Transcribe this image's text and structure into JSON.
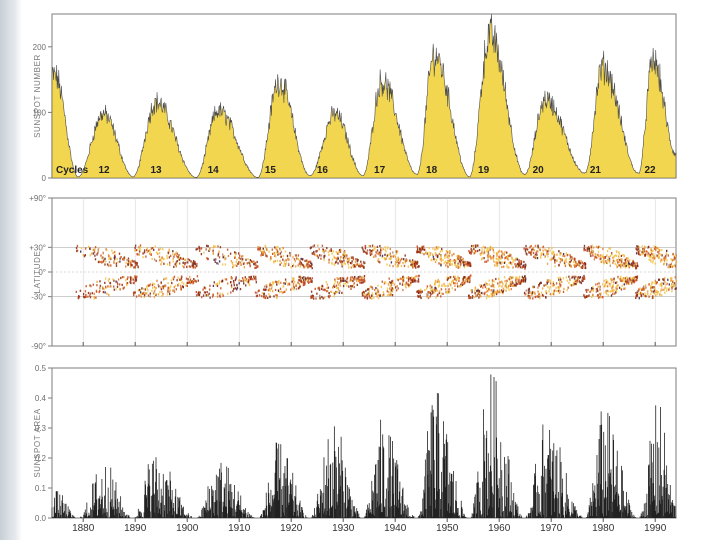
{
  "colors": {
    "number_fill": "#f2d64f",
    "number_stroke": "#4a4a4a",
    "area_bar": "#222222",
    "butterfly_hot": "#d9622b",
    "butterfly_core": "#f0b03a",
    "butterfly_dark": "#5a1e10",
    "frame": "#7d7d7d"
  },
  "chart_data": [
    {
      "type": "area",
      "id": "sunspot-number",
      "ylabel": "SUNSPOT NUMBER",
      "ylim": [
        0,
        250
      ],
      "yticks": [
        {
          "value": 0,
          "label": "0"
        },
        {
          "value": 100,
          "label": "100"
        },
        {
          "value": 200,
          "label": "200"
        }
      ],
      "xlim": [
        1874,
        1994
      ],
      "cycles_label": "Cycles",
      "cycle_labels": [
        {
          "label": "12",
          "x": 1884
        },
        {
          "label": "13",
          "x": 1894
        },
        {
          "label": "14",
          "x": 1905
        },
        {
          "label": "15",
          "x": 1916
        },
        {
          "label": "16",
          "x": 1926
        },
        {
          "label": "17",
          "x": 1937
        },
        {
          "label": "18",
          "x": 1947
        },
        {
          "label": "19",
          "x": 1957
        },
        {
          "label": "20",
          "x": 1967.5
        },
        {
          "label": "21",
          "x": 1978.5
        },
        {
          "label": "22",
          "x": 1989
        }
      ],
      "peaks": [
        {
          "year": 1874.5,
          "value": 175
        },
        {
          "year": 1883.9,
          "value": 110
        },
        {
          "year": 1894.0,
          "value": 130
        },
        {
          "year": 1906.0,
          "value": 115
        },
        {
          "year": 1917.6,
          "value": 165
        },
        {
          "year": 1928.4,
          "value": 110
        },
        {
          "year": 1937.4,
          "value": 165
        },
        {
          "year": 1947.5,
          "value": 210
        },
        {
          "year": 1958.2,
          "value": 245
        },
        {
          "year": 1968.9,
          "value": 135
        },
        {
          "year": 1979.9,
          "value": 190
        },
        {
          "year": 1989.6,
          "value": 200
        }
      ],
      "minima": [
        {
          "year": 1879.0,
          "value": 2
        },
        {
          "year": 1889.6,
          "value": 2
        },
        {
          "year": 1901.7,
          "value": 1
        },
        {
          "year": 1913.6,
          "value": 1
        },
        {
          "year": 1923.6,
          "value": 4
        },
        {
          "year": 1933.8,
          "value": 4
        },
        {
          "year": 1944.2,
          "value": 6
        },
        {
          "year": 1954.3,
          "value": 2
        },
        {
          "year": 1964.9,
          "value": 6
        },
        {
          "year": 1976.5,
          "value": 8
        },
        {
          "year": 1986.8,
          "value": 8
        },
        {
          "year": 1994,
          "value": 40
        }
      ]
    },
    {
      "type": "scatter",
      "id": "butterfly-diagram",
      "ylabel": "LATITUDE",
      "ylim": [
        -90,
        90
      ],
      "xlim": [
        1874,
        1994
      ],
      "yticks": [
        {
          "value": 90,
          "label": "+90°"
        },
        {
          "value": 30,
          "label": "+30°"
        },
        {
          "value": 0,
          "label": "0°"
        },
        {
          "value": -30,
          "label": "-30°"
        },
        {
          "value": -90,
          "label": "-90°"
        }
      ],
      "cycles": [
        {
          "start": 1878.5,
          "end": 1890.5,
          "strength": 0.6
        },
        {
          "start": 1889.5,
          "end": 1902.0,
          "strength": 0.75
        },
        {
          "start": 1901.5,
          "end": 1913.5,
          "strength": 0.6
        },
        {
          "start": 1913.0,
          "end": 1924.0,
          "strength": 0.8
        },
        {
          "start": 1923.5,
          "end": 1934.0,
          "strength": 0.75
        },
        {
          "start": 1933.5,
          "end": 1944.5,
          "strength": 0.85
        },
        {
          "start": 1944.0,
          "end": 1954.5,
          "strength": 0.95
        },
        {
          "start": 1954.0,
          "end": 1965.0,
          "strength": 1.0
        },
        {
          "start": 1964.5,
          "end": 1976.5,
          "strength": 0.85
        },
        {
          "start": 1976.0,
          "end": 1986.5,
          "strength": 0.95
        },
        {
          "start": 1986.0,
          "end": 1996.5,
          "strength": 0.95
        }
      ]
    },
    {
      "type": "bar",
      "id": "sunspot-area",
      "ylabel": "SUNSPOT AREA",
      "ylim": [
        0,
        0.5
      ],
      "xlim": [
        1874,
        1994
      ],
      "yticks": [
        {
          "value": 0,
          "label": "0.0"
        },
        {
          "value": 0.1,
          "label": "0.1"
        },
        {
          "value": 0.2,
          "label": "0.2"
        },
        {
          "value": 0.3,
          "label": "0.3"
        },
        {
          "value": 0.4,
          "label": "0.4"
        },
        {
          "value": 0.5,
          "label": "0.5"
        }
      ],
      "xticks": [
        {
          "value": 1880,
          "label": "1880"
        },
        {
          "value": 1890,
          "label": "1890"
        },
        {
          "value": 1900,
          "label": "1900"
        },
        {
          "value": 1910,
          "label": "1910"
        },
        {
          "value": 1920,
          "label": "1920"
        },
        {
          "value": 1930,
          "label": "1930"
        },
        {
          "value": 1940,
          "label": "1940"
        },
        {
          "value": 1950,
          "label": "1950"
        },
        {
          "value": 1960,
          "label": "1960"
        },
        {
          "value": 1970,
          "label": "1970"
        },
        {
          "value": 1980,
          "label": "1980"
        },
        {
          "value": 1990,
          "label": "1990"
        }
      ],
      "peaks": [
        {
          "year": 1874.8,
          "value": 0.09
        },
        {
          "year": 1883.9,
          "value": 0.19
        },
        {
          "year": 1893.5,
          "value": 0.22
        },
        {
          "year": 1906.0,
          "value": 0.2
        },
        {
          "year": 1917.6,
          "value": 0.25
        },
        {
          "year": 1928.0,
          "value": 0.32
        },
        {
          "year": 1937.4,
          "value": 0.32
        },
        {
          "year": 1947.5,
          "value": 0.42
        },
        {
          "year": 1958.2,
          "value": 0.48
        },
        {
          "year": 1968.9,
          "value": 0.32
        },
        {
          "year": 1980.0,
          "value": 0.36
        },
        {
          "year": 1990.5,
          "value": 0.38
        }
      ],
      "minima": [
        {
          "year": 1879.0,
          "value": 0.0
        },
        {
          "year": 1889.6,
          "value": 0.0
        },
        {
          "year": 1901.7,
          "value": 0.0
        },
        {
          "year": 1913.6,
          "value": 0.0
        },
        {
          "year": 1923.6,
          "value": 0.0
        },
        {
          "year": 1933.8,
          "value": 0.0
        },
        {
          "year": 1944.2,
          "value": 0.0
        },
        {
          "year": 1954.3,
          "value": 0.0
        },
        {
          "year": 1964.9,
          "value": 0.0
        },
        {
          "year": 1976.5,
          "value": 0.0
        },
        {
          "year": 1986.8,
          "value": 0.0
        },
        {
          "year": 1994,
          "value": 0.05
        }
      ]
    }
  ]
}
